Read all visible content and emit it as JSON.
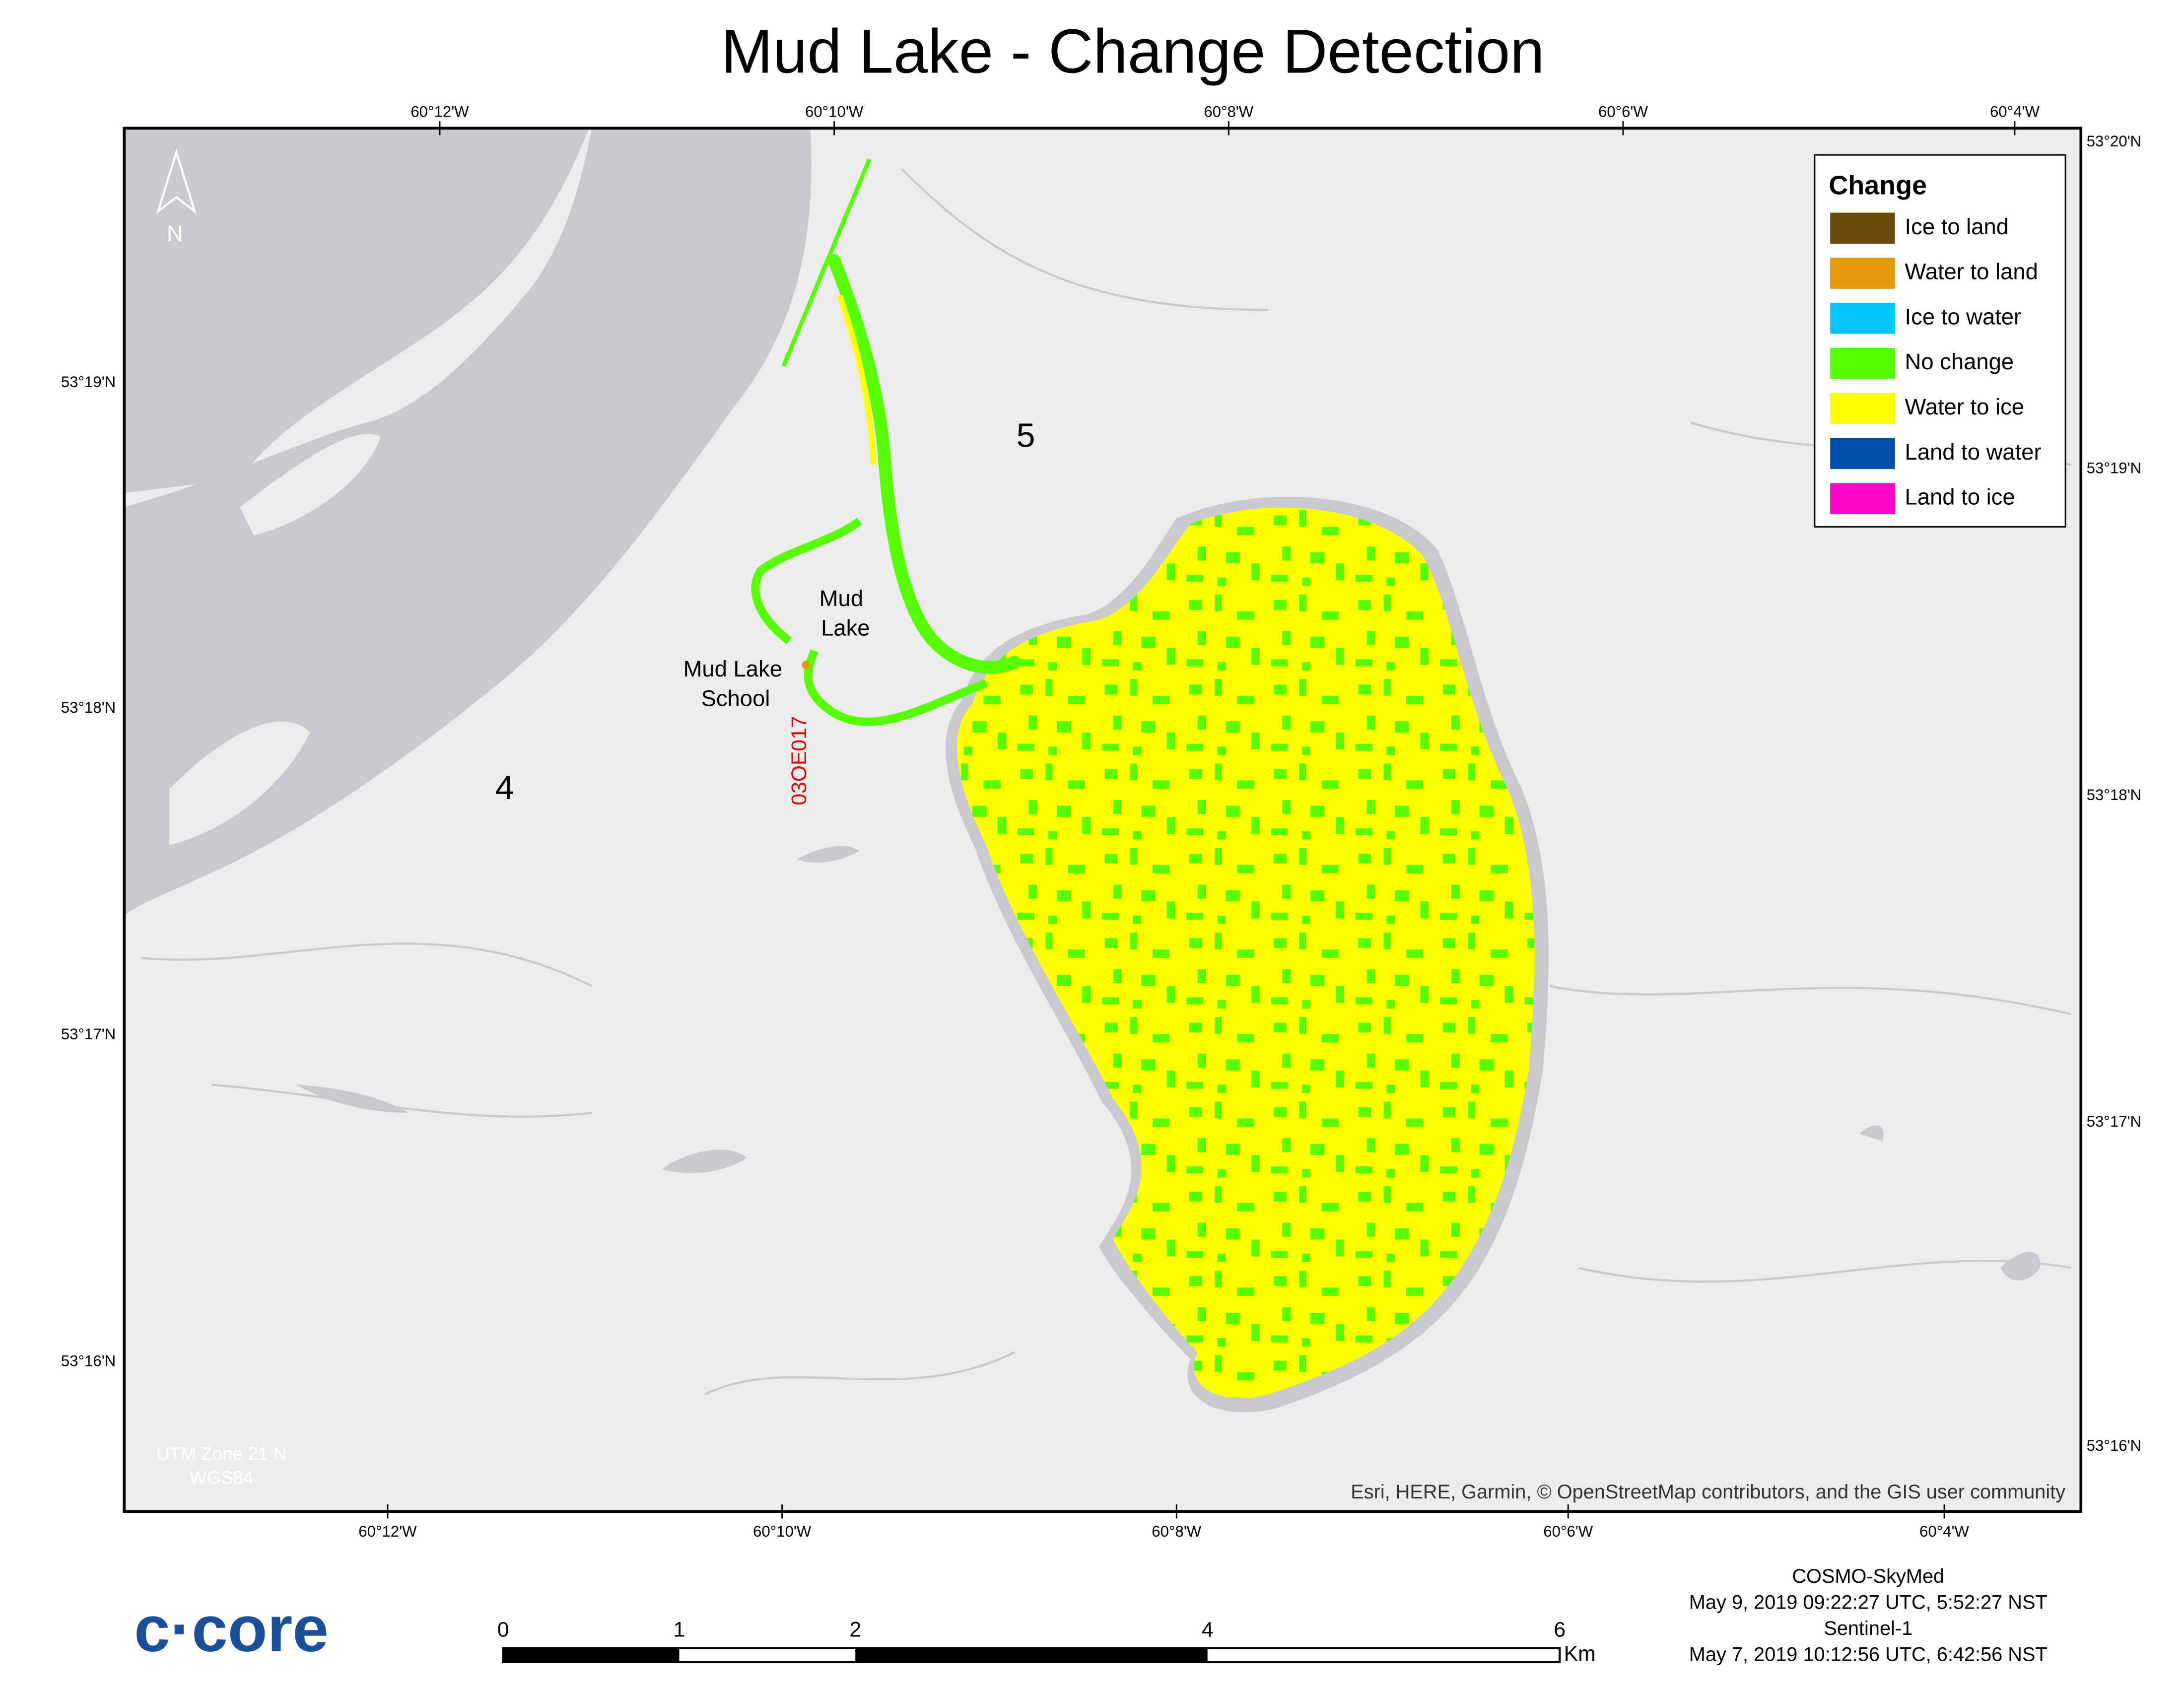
{
  "header": {
    "title": "Mud Lake - Change Detection"
  },
  "graticule": {
    "top": [
      "60°12'W",
      "60°10'W",
      "60°8'W",
      "60°6'W",
      "60°4'W"
    ],
    "bottom": [
      "60°12'W",
      "60°10'W",
      "60°8'W",
      "60°6'W",
      "60°4'W"
    ],
    "left": [
      "53°19'N",
      "53°18'N",
      "53°17'N",
      "53°16'N"
    ],
    "right": [
      "53°20'N",
      "53°19'N",
      "53°18'N",
      "53°17'N",
      "53°16'N"
    ]
  },
  "legend": {
    "title": "Change",
    "items": [
      {
        "label": "Ice to land",
        "color": "#6b4a0e"
      },
      {
        "label": "Water to land",
        "color": "#e6980c"
      },
      {
        "label": "Ice to water",
        "color": "#00c5ff"
      },
      {
        "label": "No change",
        "color": "#55ff00"
      },
      {
        "label": "Water to ice",
        "color": "#ffff00"
      },
      {
        "label": "Land to water",
        "color": "#0050b0"
      },
      {
        "label": "Land to ice",
        "color": "#ff00c5"
      }
    ]
  },
  "map_labels": {
    "zone_5": "5",
    "zone_4": "4",
    "lake": [
      "Mud",
      "Lake"
    ],
    "school": [
      "Mud Lake",
      "School"
    ],
    "station": "03OE017",
    "north": "N"
  },
  "projection": [
    "UTM Zone 21 N",
    "WGS84"
  ],
  "attribution": "Esri, HERE, Garmin, © OpenStreetMap contributors, and the GIS user community",
  "scale_bar": {
    "ticks": [
      0,
      1,
      2,
      4,
      6
    ],
    "unit": "Km"
  },
  "sources": [
    "COSMO-SkyMed",
    "May 9, 2019 09:22:27 UTC, 5:52:27 NST",
    "Sentinel-1",
    "May 7, 2019 10:12:56 UTC, 6:42:56 NST"
  ],
  "logo": "c·core"
}
